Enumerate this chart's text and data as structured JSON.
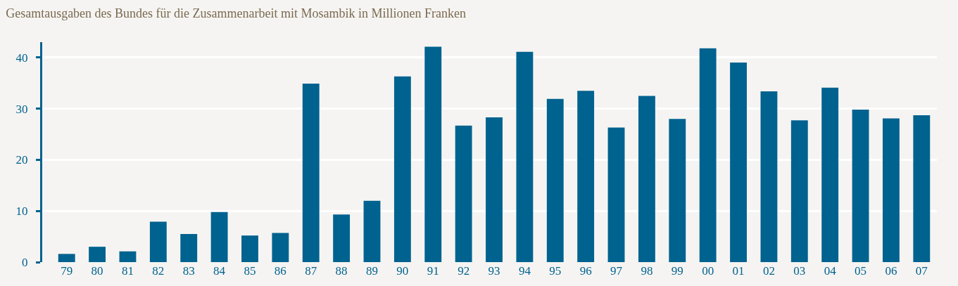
{
  "chart_data": {
    "type": "bar",
    "title": "Gesamtausgaben des Bundes für die Zusammenarbeit mit Mosambik in Millionen Franken",
    "categories": [
      "79",
      "80",
      "81",
      "82",
      "83",
      "84",
      "85",
      "86",
      "87",
      "88",
      "89",
      "90",
      "91",
      "92",
      "93",
      "94",
      "95",
      "96",
      "97",
      "98",
      "99",
      "00",
      "01",
      "02",
      "03",
      "04",
      "05",
      "06",
      "07"
    ],
    "values": [
      1.6,
      3.0,
      2.1,
      7.9,
      5.5,
      9.8,
      5.2,
      5.7,
      34.9,
      9.3,
      12.0,
      36.3,
      42.1,
      26.7,
      28.3,
      41.1,
      31.9,
      33.5,
      26.3,
      32.5,
      28.0,
      41.8,
      39.0,
      33.4,
      27.7,
      34.1,
      29.8,
      28.1,
      28.7
    ],
    "color": "#00628f",
    "ylim": [
      0,
      43
    ],
    "yticks": [
      0,
      10,
      20,
      30,
      40
    ],
    "grid": "y"
  }
}
